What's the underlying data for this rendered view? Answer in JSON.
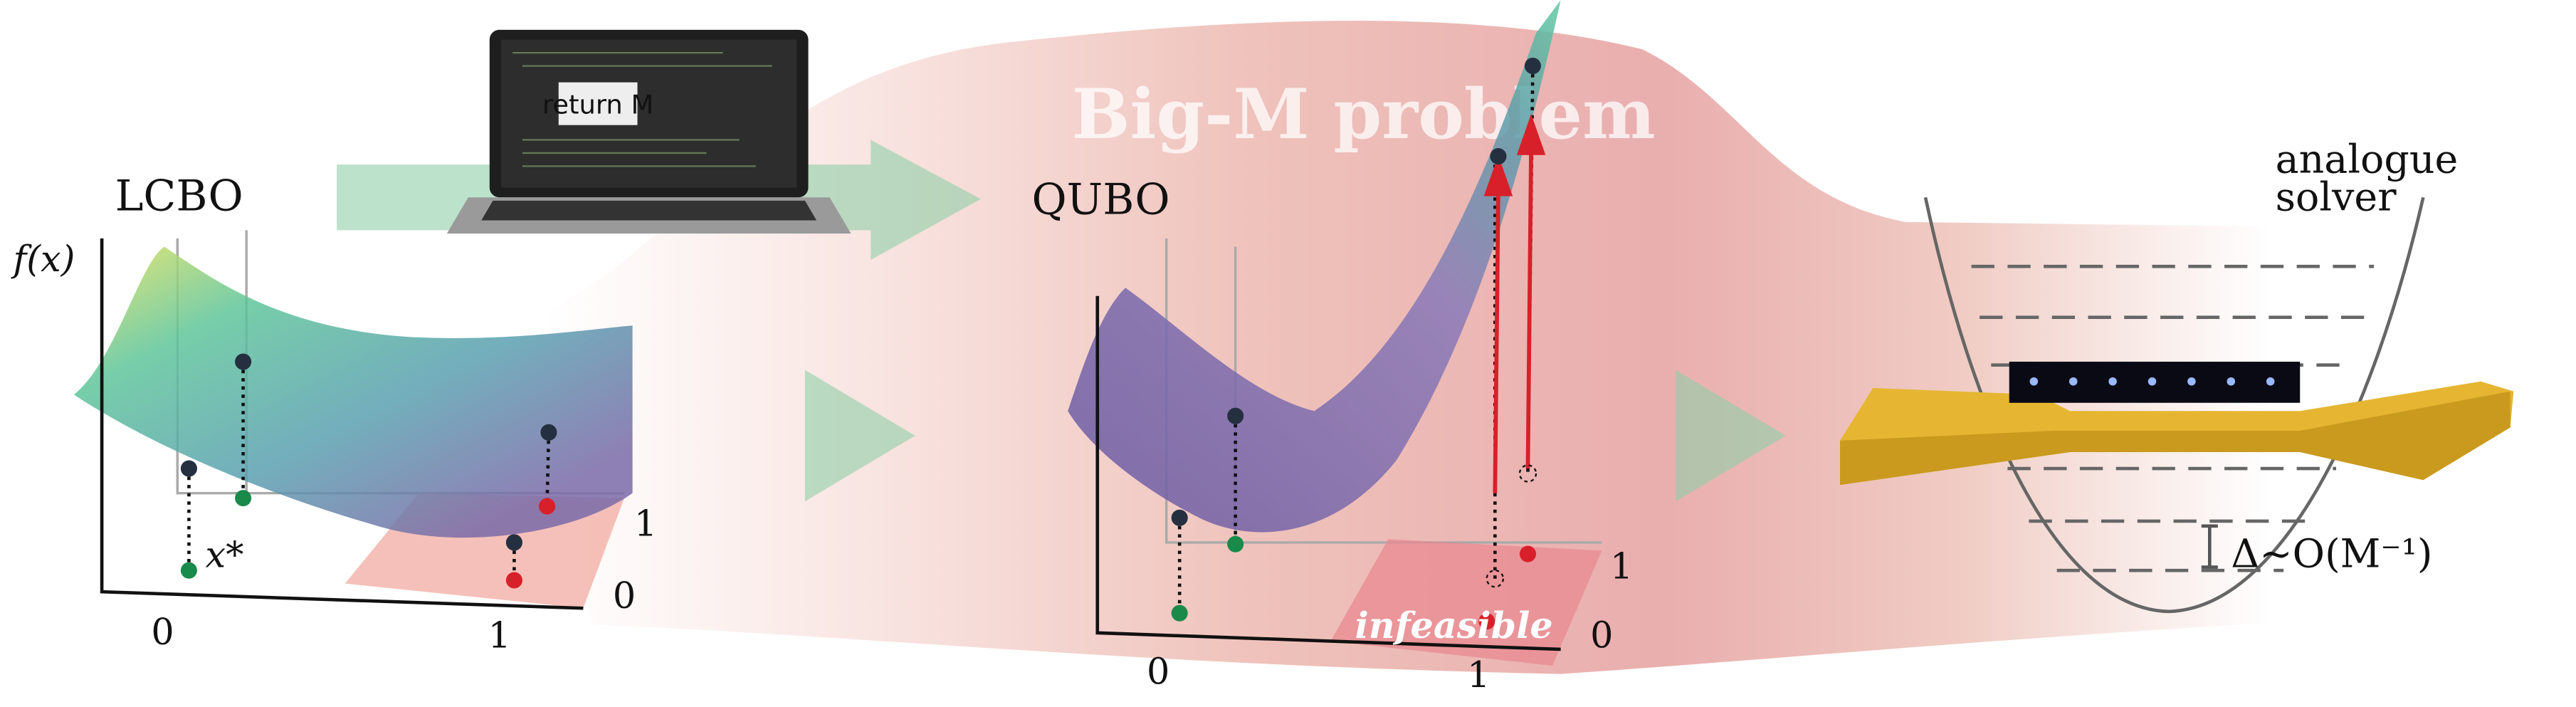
{
  "laptop": {
    "label": "return M"
  },
  "banner": {
    "title": "Big-M problem"
  },
  "lcbo": {
    "label": "LCBO",
    "y_axis_label": "f(x)",
    "optimum_label": "x*",
    "x_ticks": [
      "0",
      "1"
    ],
    "z_ticks": [
      "1",
      "0"
    ]
  },
  "qubo": {
    "label": "QUBO",
    "region_label": "infeasible",
    "x_ticks": [
      "0",
      "1"
    ],
    "z_ticks": [
      "1",
      "0"
    ]
  },
  "solver": {
    "label_lines": [
      "analogue",
      "solver"
    ],
    "gap_label": "Δ~O(M⁻¹)"
  }
}
